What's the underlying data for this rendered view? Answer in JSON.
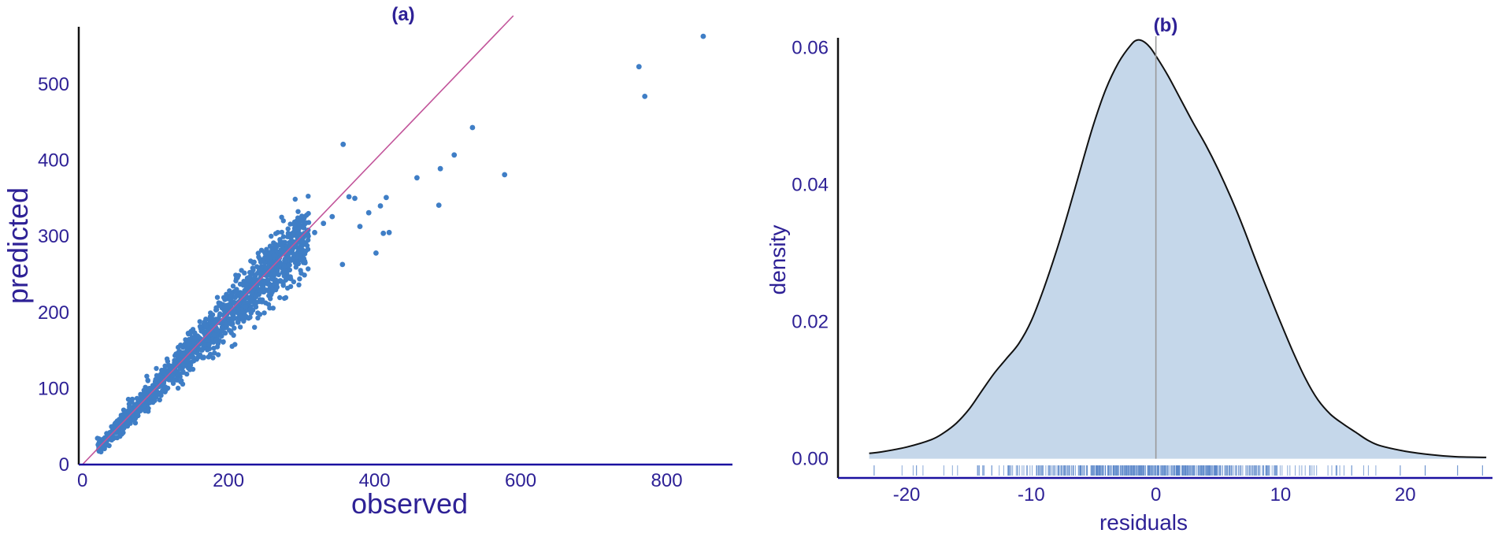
{
  "colors": {
    "text": "#2e2196",
    "axis_x": "#1a10a0",
    "axis_y": "#111111",
    "points": "#3f7ec6",
    "identity_line": "#c2549a",
    "density_fill": "#c5d7ea",
    "density_line": "#111111",
    "zero_line": "#9a9a9a",
    "rug": "#5a86c9"
  },
  "chart_data": [
    {
      "type": "scatter",
      "title": "(a)",
      "xlabel": "observed",
      "ylabel": "predicted",
      "xlim": [
        -5,
        890
      ],
      "ylim": [
        0,
        590
      ],
      "xticks": [
        0,
        200,
        400,
        600,
        800
      ],
      "yticks": [
        0,
        100,
        200,
        300,
        400,
        500
      ],
      "reference_line": "y = x",
      "grid": false,
      "bulk_description_points": "dense cloud hugging the y=x line from about 20 to 300 observed",
      "outliers": [
        {
          "x": 850,
          "y": 563
        },
        {
          "x": 762,
          "y": 523
        },
        {
          "x": 770,
          "y": 484
        },
        {
          "x": 534,
          "y": 443
        },
        {
          "x": 357,
          "y": 421
        },
        {
          "x": 578,
          "y": 381
        },
        {
          "x": 509,
          "y": 407
        },
        {
          "x": 490,
          "y": 389
        },
        {
          "x": 458,
          "y": 377
        },
        {
          "x": 488,
          "y": 341
        },
        {
          "x": 416,
          "y": 351
        },
        {
          "x": 408,
          "y": 340
        },
        {
          "x": 420,
          "y": 305
        },
        {
          "x": 412,
          "y": 304
        },
        {
          "x": 402,
          "y": 278
        },
        {
          "x": 380,
          "y": 313
        },
        {
          "x": 356,
          "y": 263
        },
        {
          "x": 392,
          "y": 331
        },
        {
          "x": 373,
          "y": 350
        },
        {
          "x": 365,
          "y": 352
        },
        {
          "x": 342,
          "y": 326
        },
        {
          "x": 330,
          "y": 317
        },
        {
          "x": 318,
          "y": 305
        }
      ]
    },
    {
      "type": "area",
      "title": "(b)",
      "xlabel": "residuals",
      "ylabel": "density",
      "xlim": [
        -25.5,
        27
      ],
      "ylim": [
        -0.0028,
        0.0635
      ],
      "xticks": [
        -20,
        -10,
        0,
        10,
        20
      ],
      "yticks": [
        0.0,
        0.02,
        0.04,
        0.06
      ],
      "ytick_labels": [
        "0.00",
        "0.02",
        "0.04",
        "0.06"
      ],
      "grid": false,
      "vertical_line_x": 0,
      "density_curve": {
        "x": [
          -23,
          -22,
          -20,
          -18,
          -17,
          -16,
          -15,
          -14,
          -13,
          -12,
          -11,
          -10,
          -9,
          -8,
          -7,
          -6,
          -5,
          -4,
          -3,
          -2,
          -1.5,
          -1,
          -0.5,
          0,
          1,
          2,
          3,
          4,
          5,
          6,
          7,
          8,
          9,
          10,
          11,
          12,
          13,
          14,
          15,
          16,
          17,
          18,
          20,
          22,
          24,
          26.5
        ],
        "y": [
          0.0008,
          0.001,
          0.0017,
          0.0028,
          0.0038,
          0.0052,
          0.0072,
          0.0098,
          0.0124,
          0.0146,
          0.0168,
          0.0201,
          0.0248,
          0.0302,
          0.0362,
          0.0426,
          0.0488,
          0.054,
          0.0578,
          0.0604,
          0.0611,
          0.0609,
          0.0601,
          0.0588,
          0.0558,
          0.0524,
          0.049,
          0.0458,
          0.0422,
          0.0382,
          0.0338,
          0.029,
          0.0244,
          0.0199,
          0.0156,
          0.0117,
          0.0086,
          0.0065,
          0.0051,
          0.0039,
          0.0027,
          0.0019,
          0.0011,
          0.0006,
          0.0003,
          0.0002
        ]
      },
      "rug": "residual values marked along the x axis from about -23 to 26"
    }
  ]
}
